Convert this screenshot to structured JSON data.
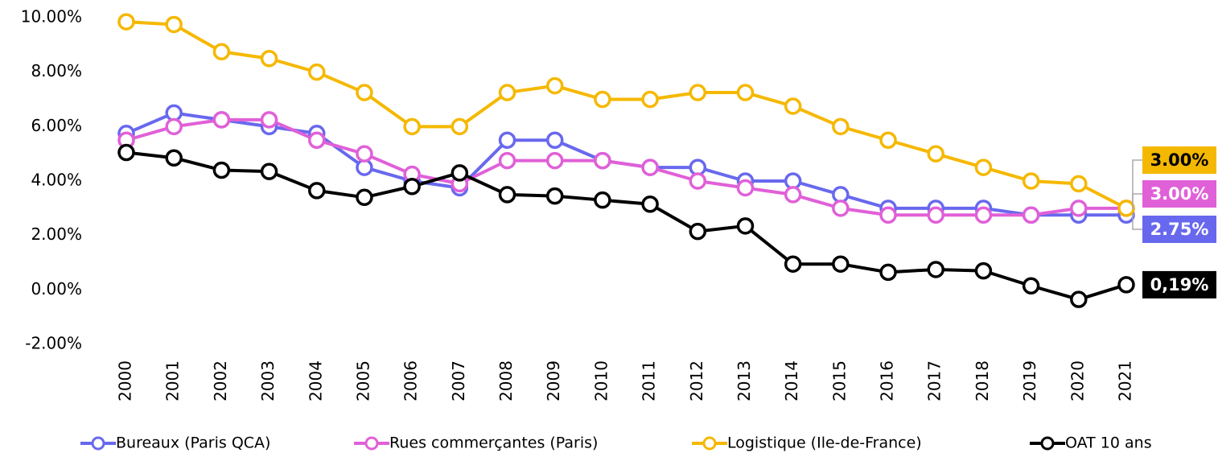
{
  "chart_data": {
    "type": "line",
    "categories": [
      "2000",
      "2001",
      "2002",
      "2003",
      "2004",
      "2005",
      "2006",
      "2007",
      "2008",
      "2009",
      "2010",
      "2011",
      "2012",
      "2013",
      "2014",
      "2015",
      "2016",
      "2017",
      "2018",
      "2019",
      "2020",
      "2021"
    ],
    "series": [
      {
        "name": "Bureaux (Paris QCA)",
        "color": "#6868ee",
        "values": [
          5.75,
          6.5,
          6.25,
          6.0,
          5.75,
          4.5,
          4.0,
          3.75,
          5.5,
          5.5,
          4.75,
          4.5,
          4.5,
          4.0,
          4.0,
          3.5,
          3.0,
          3.0,
          3.0,
          2.75,
          2.75,
          2.75
        ],
        "value_labels": [
          null,
          null,
          null,
          null,
          null,
          null,
          null,
          null,
          null,
          null,
          null,
          null,
          null,
          null,
          null,
          null,
          null,
          null,
          null,
          null,
          null,
          "2.75%"
        ]
      },
      {
        "name": "Rues commerçantes (Paris)",
        "color": "#e060d8",
        "values": [
          5.5,
          6.0,
          6.25,
          6.25,
          5.5,
          5.0,
          4.25,
          3.9,
          4.75,
          4.75,
          4.75,
          4.5,
          4.0,
          3.75,
          3.5,
          3.0,
          2.75,
          2.75,
          2.75,
          2.75,
          3.0,
          3.0
        ],
        "value_labels": [
          null,
          null,
          null,
          null,
          null,
          null,
          null,
          null,
          null,
          null,
          null,
          null,
          null,
          null,
          null,
          null,
          null,
          null,
          null,
          null,
          null,
          "3.00%"
        ]
      },
      {
        "name": "Logistique (Ile-de-France)",
        "color": "#f5b800",
        "values": [
          9.85,
          9.75,
          8.75,
          8.5,
          8.0,
          7.25,
          6.0,
          6.0,
          7.25,
          7.5,
          7.0,
          7.0,
          7.25,
          7.25,
          6.75,
          6.0,
          5.5,
          5.0,
          4.5,
          4.0,
          3.9,
          3.0
        ],
        "value_labels": [
          null,
          null,
          null,
          null,
          null,
          null,
          null,
          null,
          null,
          null,
          null,
          null,
          null,
          null,
          null,
          null,
          null,
          null,
          null,
          null,
          null,
          "3.00%"
        ]
      },
      {
        "name": "OAT 10 ans",
        "color": "#000000",
        "values": [
          5.05,
          4.85,
          4.4,
          4.35,
          3.65,
          3.4,
          3.8,
          4.3,
          3.5,
          3.45,
          3.3,
          3.15,
          2.15,
          2.35,
          0.95,
          0.95,
          0.65,
          0.75,
          0.7,
          0.15,
          -0.35,
          0.19
        ],
        "value_labels": [
          null,
          null,
          null,
          null,
          null,
          null,
          null,
          null,
          null,
          null,
          null,
          null,
          null,
          null,
          null,
          null,
          null,
          null,
          null,
          null,
          null,
          "0,19%"
        ]
      }
    ],
    "ylim": [
      -2,
      10
    ],
    "yticks": [
      {
        "value": -2,
        "label": "-2.00%"
      },
      {
        "value": 0,
        "label": "0.00%"
      },
      {
        "value": 2,
        "label": "2.00%"
      },
      {
        "value": 4,
        "label": "4.00%"
      },
      {
        "value": 6,
        "label": "6.00%"
      },
      {
        "value": 8,
        "label": "8.00%"
      },
      {
        "value": 10,
        "label": "10.00%"
      }
    ],
    "grid": false,
    "legend": "bottom"
  }
}
